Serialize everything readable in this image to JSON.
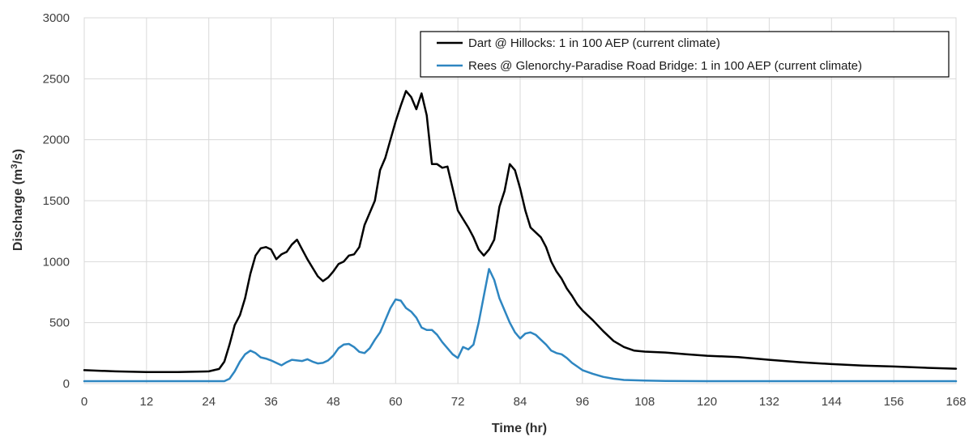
{
  "chart_data": {
    "type": "line",
    "title": "",
    "xlabel": "Time (hr)",
    "ylabel_main": "Discharge (m",
    "ylabel_sup": "3",
    "ylabel_tail": "/s)",
    "xlim": [
      0,
      168
    ],
    "ylim": [
      0,
      3000
    ],
    "xticks": [
      0,
      12,
      24,
      36,
      48,
      60,
      72,
      84,
      96,
      108,
      120,
      132,
      144,
      156,
      168
    ],
    "yticks": [
      0,
      500,
      1000,
      1500,
      2000,
      2500,
      3000
    ],
    "grid": true,
    "legend_position": "top-right",
    "series": [
      {
        "name": "Dart @ Hillocks: 1 in 100 AEP (current climate)",
        "color": "#000000",
        "x": [
          0,
          6,
          12,
          18,
          24,
          26,
          27,
          28,
          29,
          30,
          31,
          32,
          33,
          34,
          35,
          36,
          37,
          38,
          39,
          40,
          41,
          42,
          43,
          44,
          45,
          46,
          47,
          48,
          49,
          50,
          51,
          52,
          53,
          54,
          55,
          56,
          57,
          58,
          59,
          60,
          61,
          62,
          63,
          64,
          65,
          66,
          67,
          68,
          69,
          70,
          71,
          72,
          73,
          74,
          75,
          76,
          77,
          78,
          79,
          80,
          81,
          82,
          83,
          84,
          85,
          86,
          87,
          88,
          89,
          90,
          91,
          92,
          93,
          94,
          95,
          96,
          98,
          100,
          102,
          104,
          106,
          108,
          112,
          116,
          120,
          126,
          132,
          138,
          144,
          150,
          156,
          162,
          168
        ],
        "y": [
          110,
          100,
          95,
          95,
          100,
          120,
          180,
          320,
          480,
          560,
          700,
          900,
          1050,
          1110,
          1120,
          1100,
          1020,
          1060,
          1080,
          1140,
          1180,
          1100,
          1020,
          950,
          880,
          840,
          870,
          920,
          980,
          1000,
          1050,
          1060,
          1120,
          1300,
          1400,
          1500,
          1750,
          1850,
          2000,
          2150,
          2280,
          2400,
          2350,
          2250,
          2380,
          2200,
          1800,
          1800,
          1770,
          1780,
          1600,
          1420,
          1350,
          1280,
          1200,
          1100,
          1050,
          1100,
          1180,
          1450,
          1580,
          1800,
          1750,
          1600,
          1420,
          1280,
          1240,
          1200,
          1120,
          1000,
          920,
          860,
          780,
          720,
          650,
          600,
          520,
          430,
          350,
          300,
          270,
          262,
          255,
          240,
          228,
          218,
          195,
          175,
          160,
          148,
          140,
          130,
          122
        ]
      },
      {
        "name": "Rees @ Glenorchy-Paradise Road Bridge: 1 in 100 AEP (current climate)",
        "color": "#2e86c1",
        "x": [
          0,
          6,
          12,
          18,
          24,
          27,
          28,
          29,
          30,
          31,
          32,
          33,
          34,
          35,
          36,
          37,
          38,
          39,
          40,
          41,
          42,
          43,
          44,
          45,
          46,
          47,
          48,
          49,
          50,
          51,
          52,
          53,
          54,
          55,
          56,
          57,
          58,
          59,
          60,
          61,
          62,
          63,
          64,
          65,
          66,
          67,
          68,
          69,
          70,
          71,
          72,
          73,
          74,
          75,
          76,
          77,
          78,
          79,
          80,
          81,
          82,
          83,
          84,
          85,
          86,
          87,
          88,
          89,
          90,
          91,
          92,
          93,
          94,
          95,
          96,
          98,
          100,
          102,
          104,
          108,
          112,
          120,
          132,
          144,
          156,
          168
        ],
        "y": [
          20,
          20,
          20,
          20,
          20,
          20,
          40,
          100,
          180,
          240,
          270,
          250,
          215,
          205,
          190,
          170,
          150,
          175,
          195,
          190,
          185,
          200,
          180,
          165,
          170,
          190,
          230,
          290,
          320,
          325,
          300,
          260,
          250,
          290,
          360,
          420,
          520,
          620,
          690,
          680,
          620,
          590,
          540,
          460,
          440,
          440,
          400,
          340,
          290,
          240,
          210,
          300,
          280,
          320,
          500,
          720,
          940,
          850,
          700,
          600,
          500,
          420,
          370,
          410,
          420,
          400,
          360,
          320,
          270,
          250,
          240,
          210,
          170,
          140,
          110,
          80,
          55,
          40,
          30,
          25,
          22,
          20,
          20,
          20,
          20,
          20
        ]
      }
    ]
  }
}
